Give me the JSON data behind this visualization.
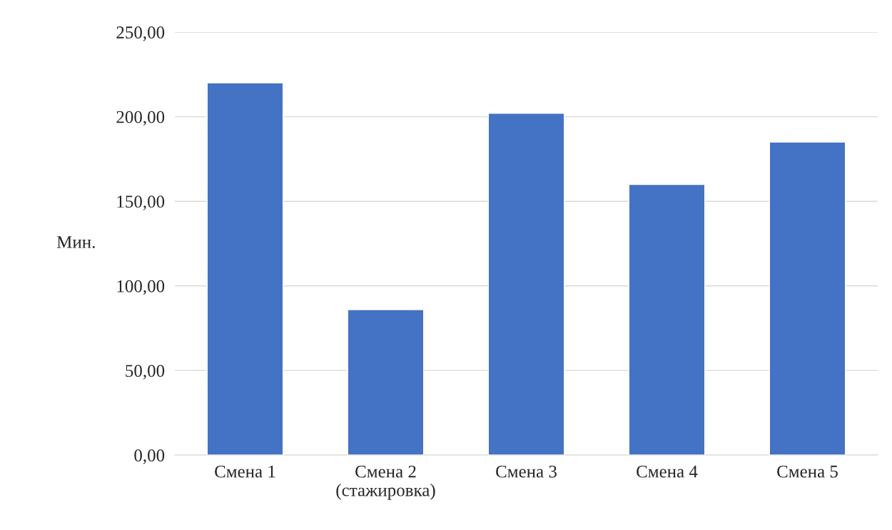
{
  "chart_data": {
    "type": "bar",
    "ylabel": "Мин.",
    "categories": [
      "Смена 1",
      "Смена 2\n(стажировка)",
      "Смена 3",
      "Смена 4",
      "Смена 5"
    ],
    "values": [
      220,
      86,
      202,
      160,
      185
    ],
    "color": "#4472c4",
    "ylim": [
      0,
      250
    ],
    "yticks": [
      {
        "value": 0,
        "label": "0,00"
      },
      {
        "value": 50,
        "label": "50,00"
      },
      {
        "value": 100,
        "label": "100,00"
      },
      {
        "value": 150,
        "label": "150,00"
      },
      {
        "value": 200,
        "label": "200,00"
      },
      {
        "value": 250,
        "label": "250,00"
      }
    ],
    "grid": "y",
    "legend": false
  }
}
